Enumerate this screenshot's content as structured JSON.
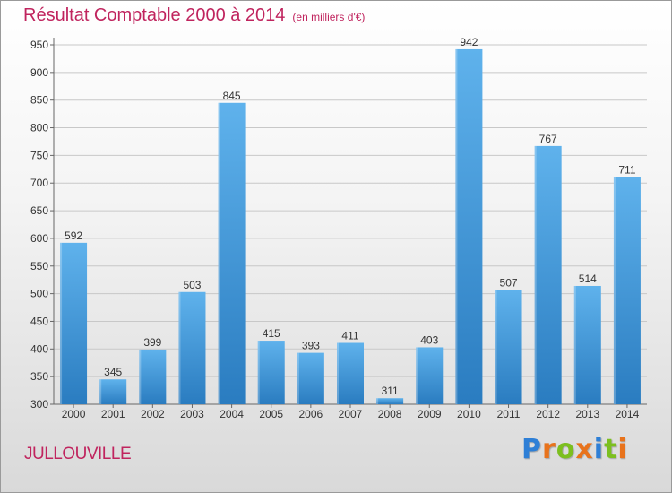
{
  "header": {
    "title": "Résultat Comptable 2000 à 2014",
    "subtitle": "(en milliers d'€)"
  },
  "footer": {
    "commune": "JULLOUVILLE",
    "logo_letters": [
      {
        "char": "P",
        "color": "#2e7fd6"
      },
      {
        "char": "r",
        "color": "#e8731c"
      },
      {
        "char": "o",
        "color": "#7cbf1f"
      },
      {
        "char": "x",
        "color": "#e8731c"
      },
      {
        "char": "i",
        "color": "#2e7fd6"
      },
      {
        "char": "t",
        "color": "#7cbf1f"
      },
      {
        "char": "i",
        "color": "#e8731c"
      }
    ]
  },
  "colors": {
    "accent": "#c0245e",
    "bar_top": "#5fb2ec",
    "bar_bottom": "#2a7cc0",
    "grid": "#c8c8c8"
  },
  "chart_data": {
    "type": "bar",
    "title": "Résultat Comptable 2000 à 2014",
    "subtitle": "(en milliers d'€)",
    "xlabel": "",
    "ylabel": "",
    "categories": [
      "2000",
      "2001",
      "2002",
      "2003",
      "2004",
      "2005",
      "2006",
      "2007",
      "2008",
      "2009",
      "2010",
      "2011",
      "2012",
      "2013",
      "2014"
    ],
    "values": [
      592,
      345,
      399,
      503,
      845,
      415,
      393,
      411,
      311,
      403,
      942,
      507,
      767,
      514,
      711
    ],
    "ylim": [
      300,
      950
    ],
    "yticks": [
      300,
      350,
      400,
      450,
      500,
      550,
      600,
      650,
      700,
      750,
      800,
      850,
      900,
      950
    ],
    "grid": true,
    "legend": "none"
  }
}
